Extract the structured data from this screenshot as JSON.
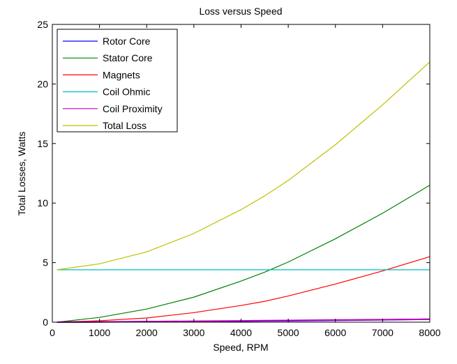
{
  "chart_data": {
    "type": "line",
    "title": "Loss versus Speed",
    "xlabel": "Speed, RPM",
    "ylabel": "Total Losses, Watts",
    "xlim": [
      0,
      8000
    ],
    "ylim": [
      0,
      25
    ],
    "xticks": [
      "0",
      "1000",
      "2000",
      "3000",
      "4000",
      "5000",
      "6000",
      "7000",
      "8000"
    ],
    "yticks": [
      "0",
      "5",
      "10",
      "15",
      "20",
      "25"
    ],
    "grid": false,
    "legend_position": "top-left",
    "x": [
      100,
      1000,
      2000,
      3000,
      4000,
      4500,
      5000,
      6000,
      7000,
      8000
    ],
    "series": [
      {
        "name": "Rotor Core",
        "color": "#0000ff",
        "values": [
          0.0,
          0.02,
          0.04,
          0.06,
          0.09,
          0.11,
          0.12,
          0.16,
          0.2,
          0.25
        ]
      },
      {
        "name": "Stator Core",
        "color": "#008000",
        "values": [
          0.0,
          0.4,
          1.1,
          2.1,
          3.45,
          4.2,
          5.05,
          7.0,
          9.15,
          11.5
        ]
      },
      {
        "name": "Magnets",
        "color": "#ff0000",
        "values": [
          0.0,
          0.12,
          0.35,
          0.8,
          1.4,
          1.75,
          2.2,
          3.2,
          4.3,
          5.5
        ]
      },
      {
        "name": "Coil Ohmic",
        "color": "#00bfbf",
        "values": [
          4.4,
          4.4,
          4.4,
          4.4,
          4.4,
          4.4,
          4.4,
          4.4,
          4.4,
          4.4
        ]
      },
      {
        "name": "Coil Proximity",
        "color": "#bf00bf",
        "values": [
          0.0,
          0.02,
          0.05,
          0.08,
          0.11,
          0.13,
          0.15,
          0.18,
          0.21,
          0.24
        ]
      },
      {
        "name": "Total Loss",
        "color": "#bfbf00",
        "values": [
          4.4,
          4.9,
          5.9,
          7.45,
          9.45,
          10.6,
          11.9,
          14.9,
          18.25,
          21.85
        ]
      }
    ]
  }
}
